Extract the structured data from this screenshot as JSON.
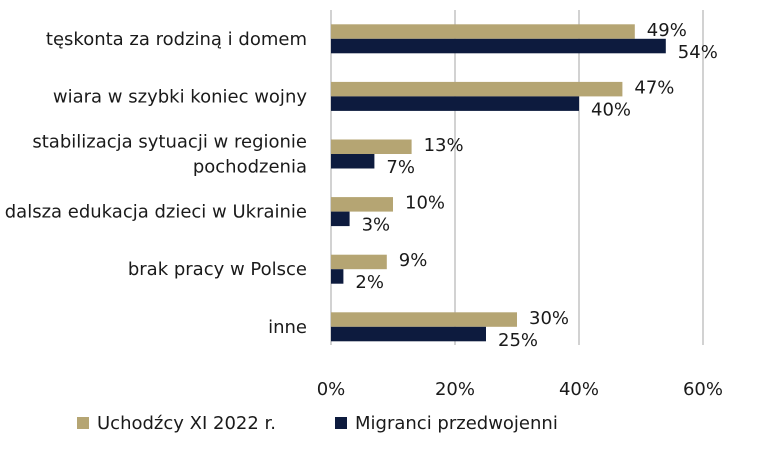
{
  "chart_data": {
    "type": "bar",
    "orientation": "horizontal",
    "categories": [
      [
        "tęskonta za rodziną i domem"
      ],
      [
        "wiara w szybki koniec wojny"
      ],
      [
        "stabilizacja sytuacji w regionie",
        "pochodzenia"
      ],
      [
        "dalsza edukacja dzieci w Ukrainie"
      ],
      [
        "brak pracy w Polsce"
      ],
      [
        "inne"
      ]
    ],
    "series": [
      {
        "name": "Uchodźcy XI 2022 r.",
        "color": "#b5a573",
        "values": [
          49,
          47,
          13,
          10,
          9,
          30
        ],
        "labels": [
          "49%",
          "47%",
          "13%",
          "10%",
          "9%",
          "30%"
        ]
      },
      {
        "name": "Migranci przedwojenni",
        "color": "#0d1b3e",
        "values": [
          54,
          40,
          7,
          3,
          2,
          25
        ],
        "labels": [
          "54%",
          "40%",
          "7%",
          "3%",
          "2%",
          "25%"
        ]
      }
    ],
    "xlim": [
      0,
      60
    ],
    "xticks": [
      0,
      20,
      40,
      60
    ],
    "xtick_labels": [
      "0%",
      "20%",
      "40%",
      "60%"
    ],
    "grid": true,
    "legend_position": "bottom-left"
  }
}
